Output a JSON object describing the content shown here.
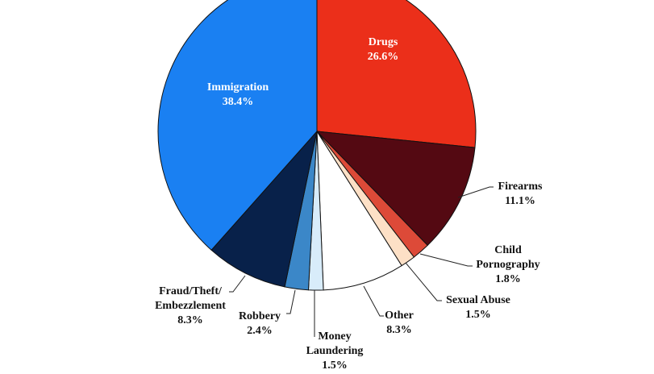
{
  "chart_data": {
    "type": "pie",
    "title": "",
    "start": "top",
    "direction": "clockwise",
    "slices": [
      {
        "name": "Drugs",
        "label_lines": [
          "Drugs"
        ],
        "value": 26.6,
        "value_label": "26.6%",
        "color": "#eb2f1a"
      },
      {
        "name": "Firearms",
        "label_lines": [
          "Firearms"
        ],
        "value": 11.1,
        "value_label": "11.1%",
        "color": "#540912"
      },
      {
        "name": "Child Pornography",
        "label_lines": [
          "Child",
          "Pornography"
        ],
        "value": 1.8,
        "value_label": "1.8%",
        "color": "#dd4a38"
      },
      {
        "name": "Sexual Abuse",
        "label_lines": [
          "Sexual Abuse"
        ],
        "value": 1.5,
        "value_label": "1.5%",
        "color": "#fde0c6"
      },
      {
        "name": "Other",
        "label_lines": [
          "Other"
        ],
        "value": 8.3,
        "value_label": "8.3%",
        "color": "#ffffff"
      },
      {
        "name": "Money Laundering",
        "label_lines": [
          "Money",
          "Laundering"
        ],
        "value": 1.5,
        "value_label": "1.5%",
        "color": "#d8ecfa"
      },
      {
        "name": "Robbery",
        "label_lines": [
          "Robbery"
        ],
        "value": 2.4,
        "value_label": "2.4%",
        "color": "#3b87c8"
      },
      {
        "name": "Fraud/Theft/Embezzlement",
        "label_lines": [
          "Fraud/Theft/",
          "Embezzlement"
        ],
        "value": 8.3,
        "value_label": "8.3%",
        "color": "#08214a"
      },
      {
        "name": "Immigration",
        "label_lines": [
          "Immigration"
        ],
        "value": 38.4,
        "value_label": "38.4%",
        "color": "#1a80f2"
      }
    ]
  }
}
